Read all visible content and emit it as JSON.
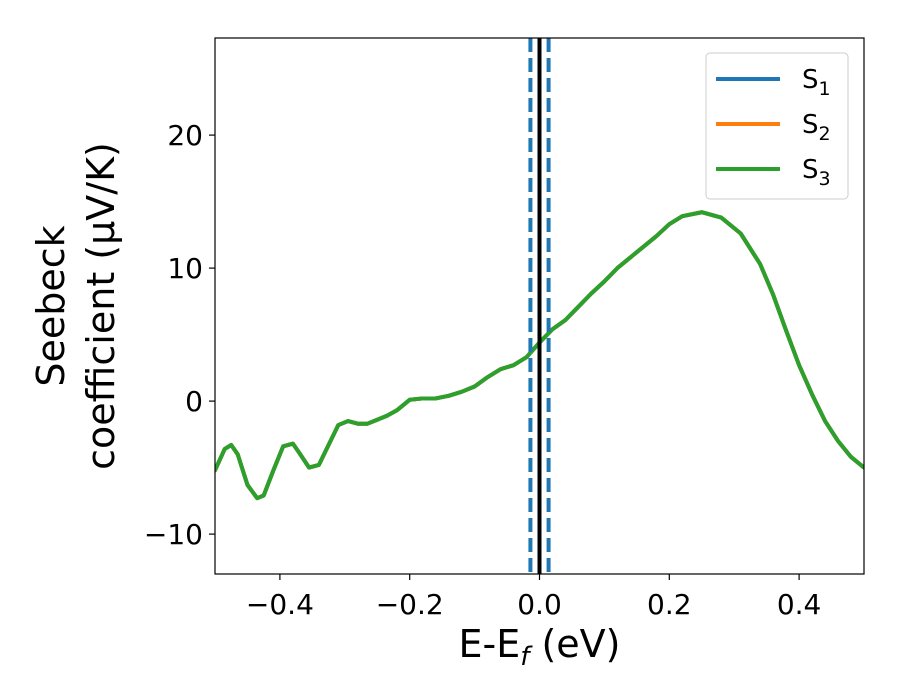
{
  "chart_data": {
    "type": "line",
    "xlabel": {
      "base": "E-E",
      "sub": "f",
      "suffix": " (eV)"
    },
    "ylabel": {
      "line1": "Seebeck",
      "line2": "coefficient  (μV/K)"
    },
    "xlim": [
      -0.5,
      0.5
    ],
    "ylim": [
      -13,
      27.3
    ],
    "xticks": [
      -0.4,
      -0.2,
      0.0,
      0.2,
      0.4
    ],
    "xtick_labels": [
      "−0.4",
      "−0.2",
      "0.0",
      "0.2",
      "0.4"
    ],
    "yticks": [
      -10,
      0,
      10,
      20
    ],
    "ytick_labels": [
      "−10",
      "0",
      "10",
      "20"
    ],
    "grid": false,
    "legend_position": "top-right",
    "series": [
      {
        "name": "S",
        "sub": "1",
        "color": "#1f77b4",
        "x": [
          -0.5,
          -0.485,
          -0.475,
          -0.465,
          -0.45,
          -0.435,
          -0.425,
          -0.41,
          -0.395,
          -0.38,
          -0.37,
          -0.355,
          -0.34,
          -0.325,
          -0.31,
          -0.295,
          -0.28,
          -0.265,
          -0.25,
          -0.235,
          -0.22,
          -0.2,
          -0.18,
          -0.16,
          -0.14,
          -0.12,
          -0.1,
          -0.08,
          -0.06,
          -0.04,
          -0.02,
          0.0,
          0.02,
          0.04,
          0.06,
          0.08,
          0.1,
          0.12,
          0.14,
          0.16,
          0.18,
          0.2,
          0.22,
          0.25,
          0.28,
          0.31,
          0.34,
          0.36,
          0.38,
          0.4,
          0.42,
          0.44,
          0.46,
          0.48,
          0.5
        ],
        "y": [
          -5.2,
          -3.6,
          -3.3,
          -4.0,
          -6.3,
          -7.3,
          -7.1,
          -5.2,
          -3.4,
          -3.2,
          -3.9,
          -5.0,
          -4.8,
          -3.3,
          -1.8,
          -1.5,
          -1.7,
          -1.7,
          -1.4,
          -1.1,
          -0.7,
          0.1,
          0.2,
          0.2,
          0.4,
          0.7,
          1.1,
          1.8,
          2.4,
          2.7,
          3.3,
          4.4,
          5.4,
          6.1,
          7.1,
          8.1,
          9.0,
          10.0,
          10.8,
          11.6,
          12.4,
          13.3,
          13.9,
          14.2,
          13.8,
          12.6,
          10.3,
          8.0,
          5.3,
          2.7,
          0.5,
          -1.5,
          -3.0,
          -4.2,
          -5.0
        ]
      },
      {
        "name": "S",
        "sub": "2",
        "color": "#ff7f0e",
        "x": [
          -0.5,
          -0.485,
          -0.475,
          -0.465,
          -0.45,
          -0.435,
          -0.425,
          -0.41,
          -0.395,
          -0.38,
          -0.37,
          -0.355,
          -0.34,
          -0.325,
          -0.31,
          -0.295,
          -0.28,
          -0.265,
          -0.25,
          -0.235,
          -0.22,
          -0.2,
          -0.18,
          -0.16,
          -0.14,
          -0.12,
          -0.1,
          -0.08,
          -0.06,
          -0.04,
          -0.02,
          0.0,
          0.02,
          0.04,
          0.06,
          0.08,
          0.1,
          0.12,
          0.14,
          0.16,
          0.18,
          0.2,
          0.22,
          0.25,
          0.28,
          0.31,
          0.34,
          0.36,
          0.38,
          0.4,
          0.42,
          0.44,
          0.46,
          0.48,
          0.5
        ],
        "y": [
          -5.2,
          -3.6,
          -3.3,
          -4.0,
          -6.3,
          -7.3,
          -7.1,
          -5.2,
          -3.4,
          -3.2,
          -3.9,
          -5.0,
          -4.8,
          -3.3,
          -1.8,
          -1.5,
          -1.7,
          -1.7,
          -1.4,
          -1.1,
          -0.7,
          0.1,
          0.2,
          0.2,
          0.4,
          0.7,
          1.1,
          1.8,
          2.4,
          2.7,
          3.3,
          4.4,
          5.4,
          6.1,
          7.1,
          8.1,
          9.0,
          10.0,
          10.8,
          11.6,
          12.4,
          13.3,
          13.9,
          14.2,
          13.8,
          12.6,
          10.3,
          8.0,
          5.3,
          2.7,
          0.5,
          -1.5,
          -3.0,
          -4.2,
          -5.0
        ]
      },
      {
        "name": "S",
        "sub": "3",
        "color": "#2ca02c",
        "x": [
          -0.5,
          -0.485,
          -0.475,
          -0.465,
          -0.45,
          -0.435,
          -0.425,
          -0.41,
          -0.395,
          -0.38,
          -0.37,
          -0.355,
          -0.34,
          -0.325,
          -0.31,
          -0.295,
          -0.28,
          -0.265,
          -0.25,
          -0.235,
          -0.22,
          -0.2,
          -0.18,
          -0.16,
          -0.14,
          -0.12,
          -0.1,
          -0.08,
          -0.06,
          -0.04,
          -0.02,
          0.0,
          0.02,
          0.04,
          0.06,
          0.08,
          0.1,
          0.12,
          0.14,
          0.16,
          0.18,
          0.2,
          0.22,
          0.25,
          0.28,
          0.31,
          0.34,
          0.36,
          0.38,
          0.4,
          0.42,
          0.44,
          0.46,
          0.48,
          0.5
        ],
        "y": [
          -5.2,
          -3.6,
          -3.3,
          -4.0,
          -6.3,
          -7.3,
          -7.1,
          -5.2,
          -3.4,
          -3.2,
          -3.9,
          -5.0,
          -4.8,
          -3.3,
          -1.8,
          -1.5,
          -1.7,
          -1.7,
          -1.4,
          -1.1,
          -0.7,
          0.1,
          0.2,
          0.2,
          0.4,
          0.7,
          1.1,
          1.8,
          2.4,
          2.7,
          3.3,
          4.4,
          5.4,
          6.1,
          7.1,
          8.1,
          9.0,
          10.0,
          10.8,
          11.6,
          12.4,
          13.3,
          13.9,
          14.2,
          13.8,
          12.6,
          10.3,
          8.0,
          5.3,
          2.7,
          0.5,
          -1.5,
          -3.0,
          -4.2,
          -5.0
        ]
      }
    ],
    "vertical_lines": [
      {
        "x": 0.0,
        "color": "#000000",
        "style": "solid"
      },
      {
        "x": -0.014,
        "color": "#1f77b4",
        "style": "dashed"
      },
      {
        "x": 0.014,
        "color": "#1f77b4",
        "style": "dashed"
      }
    ]
  }
}
